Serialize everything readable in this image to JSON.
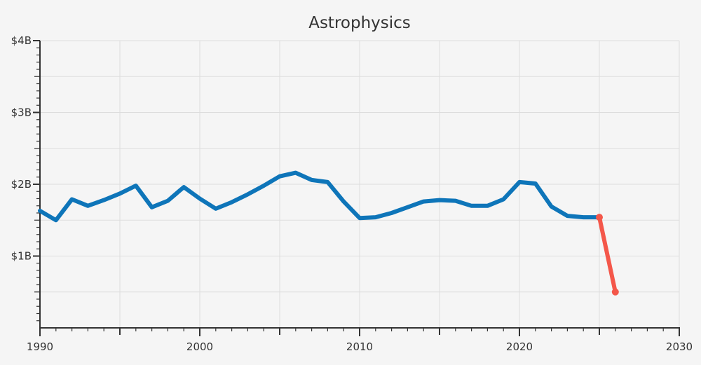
{
  "chart_data": {
    "type": "line",
    "title": "Astrophysics",
    "xlabel": "",
    "ylabel": "",
    "xlim": [
      1990,
      2030
    ],
    "ylim": [
      0,
      4
    ],
    "x_ticks": [
      1990,
      2000,
      2010,
      2020,
      2030
    ],
    "x_tick_labels": [
      "1990",
      "2000",
      "2010",
      "2020",
      "2030"
    ],
    "y_ticks": [
      1,
      2,
      3,
      4
    ],
    "y_tick_labels": [
      "$1B",
      "$2B",
      "$3B",
      "$4B"
    ],
    "grid": true,
    "colors": {
      "historical": "#0e75b9",
      "projection": "#f4574a",
      "grid": "#dddddd",
      "axis": "#333333"
    },
    "series": [
      {
        "role": "historical",
        "x": [
          1990,
          1991,
          1992,
          1993,
          1994,
          1995,
          1996,
          1997,
          1998,
          1999,
          2000,
          2001,
          2002,
          2003,
          2004,
          2005,
          2006,
          2007,
          2008,
          2009,
          2010,
          2011,
          2012,
          2013,
          2014,
          2015,
          2016,
          2017,
          2018,
          2019,
          2020,
          2021,
          2022,
          2023,
          2024,
          2025
        ],
        "y": [
          1.63,
          1.5,
          1.79,
          1.7,
          1.78,
          1.87,
          1.98,
          1.68,
          1.77,
          1.96,
          1.8,
          1.66,
          1.75,
          1.86,
          1.98,
          2.11,
          2.16,
          2.06,
          2.03,
          1.76,
          1.53,
          1.54,
          1.6,
          1.68,
          1.76,
          1.78,
          1.77,
          1.7,
          1.7,
          1.79,
          2.03,
          2.01,
          1.69,
          1.56,
          1.54,
          1.54
        ]
      },
      {
        "role": "projection",
        "x": [
          2025,
          2026
        ],
        "y": [
          1.54,
          0.5
        ]
      }
    ]
  }
}
